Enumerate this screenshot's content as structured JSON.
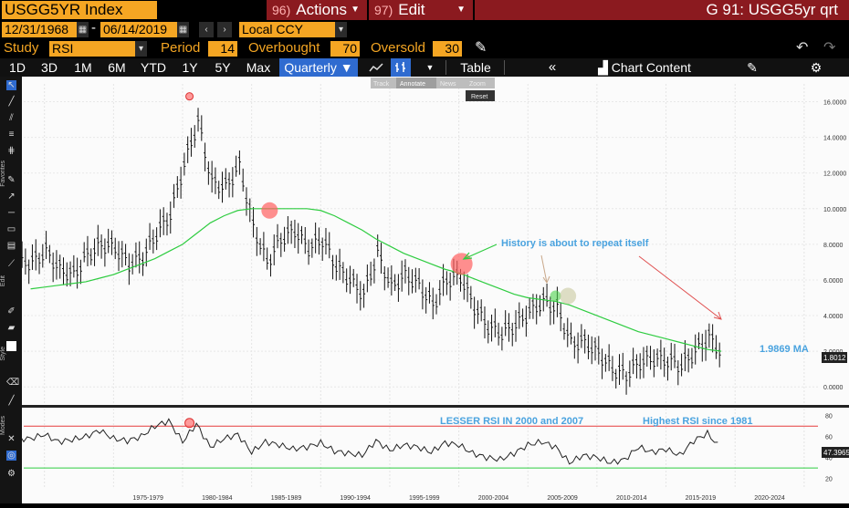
{
  "header": {
    "ticker": "USGG5YR Index",
    "actions_num": "96)",
    "actions_label": "Actions",
    "edit_num": "97)",
    "edit_label": "Edit",
    "page_title": "G 91: USGG5yr qrt"
  },
  "controls": {
    "start_date": "12/31/1968",
    "dash": "-",
    "end_date": "06/14/2019",
    "currency": "Local CCY",
    "study_label": "Study",
    "study": "RSI",
    "period_label": "Period",
    "period": "14",
    "overbought_label": "Overbought",
    "overbought": "70",
    "oversold_label": "Oversold",
    "oversold": "30"
  },
  "toolbar": {
    "ranges": [
      "1D",
      "3D",
      "1M",
      "6M",
      "YTD",
      "1Y",
      "5Y",
      "Max"
    ],
    "frequency": "Quarterly",
    "table_label": "Table",
    "chart_content_label": "Chart Content"
  },
  "mini_tools": [
    "Track",
    "Annotate",
    "News",
    "Zoom"
  ],
  "reset_label": "Reset",
  "side_labels": {
    "favorites": "Favorites",
    "edit": "Edit",
    "style": "Style",
    "modes": "Modes"
  },
  "colors": {
    "accent_orange": "#f5a623",
    "title_red": "#8b1a1f",
    "ma_line": "#2ecc40",
    "overbought_line": "#e63c3c",
    "oversold_line": "#2ecc40",
    "annotation_blue": "#4aa3df"
  },
  "annotations": {
    "history": "History is about to repeat itself",
    "ma_value": "1.9869 MA",
    "lesser_rsi": "LESSER RSI IN 2000 and 2007",
    "highest_rsi": "Highest RSI since 1981"
  },
  "chart_data": [
    {
      "type": "line",
      "subtype": "ohlc-bars with moving average",
      "x": [
        1969,
        1970,
        1971,
        1972,
        1973,
        1974,
        1975,
        1976,
        1977,
        1978,
        1979,
        1980,
        1981,
        1982,
        1983,
        1984,
        1985,
        1986,
        1987,
        1988,
        1989,
        1990,
        1991,
        1992,
        1993,
        1994,
        1995,
        1996,
        1997,
        1998,
        1999,
        2000,
        2001,
        2002,
        2003,
        2004,
        2005,
        2006,
        2007,
        2008,
        2009,
        2010,
        2011,
        2012,
        2013,
        2014,
        2015,
        2016,
        2017,
        2018,
        2019
      ],
      "series": [
        {
          "values": [
            7.0,
            7.6,
            6.6,
            6.3,
            7.4,
            8.0,
            7.8,
            6.9,
            7.3,
            8.6,
            9.7,
            12.5,
            14.9,
            11.5,
            11.2,
            12.4,
            9.0,
            7.0,
            8.3,
            8.8,
            7.8,
            8.3,
            6.8,
            6.0,
            5.2,
            7.5,
            5.6,
            6.3,
            5.7,
            4.6,
            6.0,
            6.2,
            4.5,
            3.4,
            3.0,
            3.5,
            4.2,
            4.8,
            4.4,
            2.5,
            2.5,
            1.9,
            1.0,
            0.7,
            1.4,
            1.6,
            1.5,
            1.2,
            2.0,
            2.8,
            1.8
          ]
        },
        {
          "values": [
            5.5,
            5.6,
            5.7,
            5.8,
            5.9,
            6.1,
            6.3,
            6.6,
            6.9,
            7.2,
            7.6,
            8.0,
            8.6,
            9.2,
            9.6,
            9.9,
            10.0,
            10.0,
            10.0,
            10.0,
            10.0,
            9.9,
            9.6,
            9.2,
            8.8,
            8.3,
            7.9,
            7.5,
            7.2,
            6.9,
            6.6,
            6.4,
            6.1,
            5.8,
            5.5,
            5.2,
            5.0,
            4.9,
            4.8,
            4.6,
            4.3,
            4.0,
            3.7,
            3.4,
            3.1,
            2.9,
            2.7,
            2.5,
            2.3,
            2.1,
            2.0
          ]
        }
      ],
      "y_ticks": [
        "16.0000",
        "14.0000",
        "12.0000",
        "10.0000",
        "8.0000",
        "6.0000",
        "4.0000",
        "2.0000",
        "0.0000"
      ],
      "ylim": [
        -0.5,
        17
      ],
      "last_value_label": "1.8012",
      "ma_last_label": "1.9869"
    },
    {
      "type": "line",
      "x": [
        1969,
        1970,
        1971,
        1972,
        1973,
        1974,
        1975,
        1976,
        1977,
        1978,
        1979,
        1980,
        1981,
        1982,
        1983,
        1984,
        1985,
        1986,
        1987,
        1988,
        1989,
        1990,
        1991,
        1992,
        1993,
        1994,
        1995,
        1996,
        1997,
        1998,
        1999,
        2000,
        2001,
        2002,
        2003,
        2004,
        2005,
        2006,
        2007,
        2008,
        2009,
        2010,
        2011,
        2012,
        2013,
        2014,
        2015,
        2016,
        2017,
        2018,
        2019
      ],
      "values": [
        58,
        62,
        55,
        57,
        60,
        66,
        58,
        56,
        60,
        70,
        75,
        55,
        72,
        50,
        58,
        62,
        45,
        55,
        52,
        48,
        50,
        54,
        46,
        44,
        42,
        56,
        47,
        52,
        50,
        45,
        54,
        52,
        44,
        40,
        38,
        44,
        52,
        55,
        50,
        35,
        42,
        40,
        35,
        38,
        50,
        45,
        48,
        42,
        56,
        63,
        48
      ],
      "y_ticks": [
        "80",
        "60",
        "40",
        "20"
      ],
      "ylim": [
        10,
        85
      ],
      "overbought": 70,
      "oversold": 30,
      "last_value_label": "47.3965"
    }
  ],
  "x_tick_labels": [
    "1975-1979",
    "1980-1984",
    "1985-1989",
    "1990-1994",
    "1995-1999",
    "2000-2004",
    "2005-2009",
    "2010-2014",
    "2015-2019",
    "2020-2024"
  ]
}
